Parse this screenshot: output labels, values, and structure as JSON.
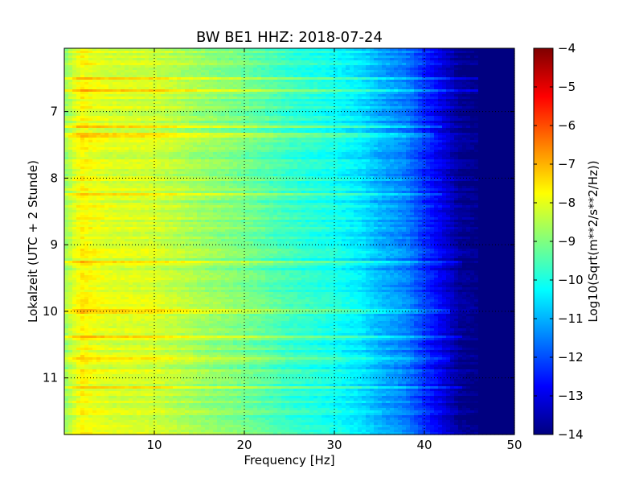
{
  "chart_data": {
    "type": "heatmap",
    "title": "BW BE1 HHZ: 2018-07-24",
    "xlabel": "Frequency [Hz]",
    "ylabel": "Lokalzeit (UTC + 2 Stunde)",
    "xlim": [
      0,
      50
    ],
    "ylim": [
      6.05,
      11.85
    ],
    "y_inverted": true,
    "x_ticks": [
      10,
      20,
      30,
      40,
      50
    ],
    "x_tick_labels": [
      "10",
      "20",
      "30",
      "40",
      "50"
    ],
    "y_ticks": [
      7,
      8,
      9,
      10,
      11
    ],
    "y_tick_labels": [
      "7",
      "8",
      "9",
      "10",
      "11"
    ],
    "grid": true,
    "colormap": "jet",
    "colorbar": {
      "label": "Log10(Sqrt(m**2/s**2/Hz))",
      "range": [
        -14,
        -4
      ],
      "ticks": [
        -4,
        -5,
        -6,
        -7,
        -8,
        -9,
        -10,
        -11,
        -12,
        -13,
        -14
      ],
      "tick_labels": [
        "−4",
        "−5",
        "−6",
        "−7",
        "−8",
        "−9",
        "−10",
        "−11",
        "−12",
        "−13",
        "−14"
      ]
    },
    "frequency_profile": [
      {
        "freq": 0,
        "value": -8.8
      },
      {
        "freq": 1,
        "value": -8.2
      },
      {
        "freq": 2,
        "value": -7.7
      },
      {
        "freq": 3,
        "value": -7.9
      },
      {
        "freq": 5,
        "value": -8.1
      },
      {
        "freq": 10,
        "value": -8.2
      },
      {
        "freq": 15,
        "value": -8.7
      },
      {
        "freq": 20,
        "value": -9.1
      },
      {
        "freq": 25,
        "value": -9.7
      },
      {
        "freq": 30,
        "value": -10.1
      },
      {
        "freq": 33,
        "value": -10.5
      },
      {
        "freq": 35,
        "value": -11.0
      },
      {
        "freq": 38,
        "value": -11.5
      },
      {
        "freq": 40,
        "value": -12.3
      },
      {
        "freq": 42,
        "value": -13.0
      },
      {
        "freq": 44,
        "value": -13.8
      },
      {
        "freq": 46,
        "value": -14.0
      },
      {
        "freq": 50,
        "value": -14.0
      }
    ],
    "bright_bands": [
      {
        "time": 6.5,
        "offset": 1.0,
        "extent_hz": 46
      },
      {
        "time": 6.68,
        "offset": 0.9,
        "extent_hz": 46
      },
      {
        "time": 7.22,
        "offset": 0.6,
        "extent_hz": 42
      },
      {
        "time": 7.35,
        "offset": 0.5,
        "extent_hz": 41
      },
      {
        "time": 8.25,
        "offset": 0.5,
        "extent_hz": 42
      },
      {
        "time": 9.28,
        "offset": 0.6,
        "extent_hz": 44
      },
      {
        "time": 10.0,
        "offset": 0.5,
        "extent_hz": 43
      },
      {
        "time": 10.38,
        "offset": 0.7,
        "extent_hz": 44
      },
      {
        "time": 10.72,
        "offset": 0.5,
        "extent_hz": 43
      },
      {
        "time": 11.15,
        "offset": 0.6,
        "extent_hz": 44
      }
    ]
  }
}
